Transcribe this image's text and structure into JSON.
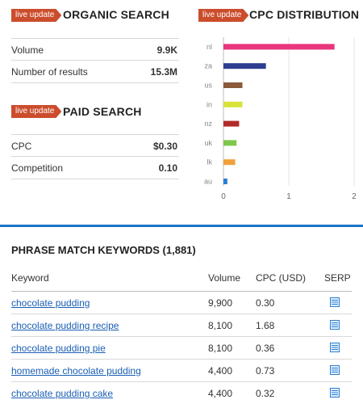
{
  "organic": {
    "tag": "live update",
    "title": "ORGANIC SEARCH",
    "rows": [
      {
        "label": "Volume",
        "value": "9.9K"
      },
      {
        "label": "Number of results",
        "value": "15.3M"
      }
    ]
  },
  "paid": {
    "tag": "live update",
    "title": "PAID SEARCH",
    "rows": [
      {
        "label": "CPC",
        "value": "$0.30"
      },
      {
        "label": "Competition",
        "value": "0.10"
      }
    ]
  },
  "cpc": {
    "tag": "live update",
    "title": "CPC DISTRIBUTION"
  },
  "chart_data": {
    "type": "bar",
    "orientation": "horizontal",
    "title": "CPC DISTRIBUTION",
    "categories": [
      "nl",
      "za",
      "us",
      "in",
      "nz",
      "uk",
      "lk",
      "au"
    ],
    "values": [
      1.7,
      0.65,
      0.29,
      0.29,
      0.24,
      0.2,
      0.18,
      0.06
    ],
    "colors": [
      "#e8357c",
      "#2d3e91",
      "#8a5a3a",
      "#d7e23a",
      "#b22a2a",
      "#7dc84a",
      "#f0a03c",
      "#2a7fd4"
    ],
    "xlim": [
      0,
      2
    ],
    "xticks": [
      "0",
      "1",
      "2"
    ],
    "grid": "vertical"
  },
  "phrase": {
    "title": "PHRASE MATCH KEYWORDS (1,881)",
    "headers": {
      "keyword": "Keyword",
      "volume": "Volume",
      "cpc": "CPC (USD)",
      "serp": "SERP"
    },
    "rows": [
      {
        "keyword": "chocolate pudding",
        "volume": "9,900",
        "cpc": "0.30"
      },
      {
        "keyword": "chocolate pudding recipe",
        "volume": "8,100",
        "cpc": "1.68"
      },
      {
        "keyword": "chocolate pudding pie",
        "volume": "8,100",
        "cpc": "0.36"
      },
      {
        "keyword": "homemade chocolate pudding",
        "volume": "4,400",
        "cpc": "0.73"
      },
      {
        "keyword": "chocolate pudding cake",
        "volume": "4,400",
        "cpc": "0.32"
      }
    ]
  },
  "icons": {
    "serp": "serp-list-icon"
  },
  "colors": {
    "accent": "#1a73c8",
    "tag": "#cb4d2c",
    "link": "#1a5fb4"
  }
}
